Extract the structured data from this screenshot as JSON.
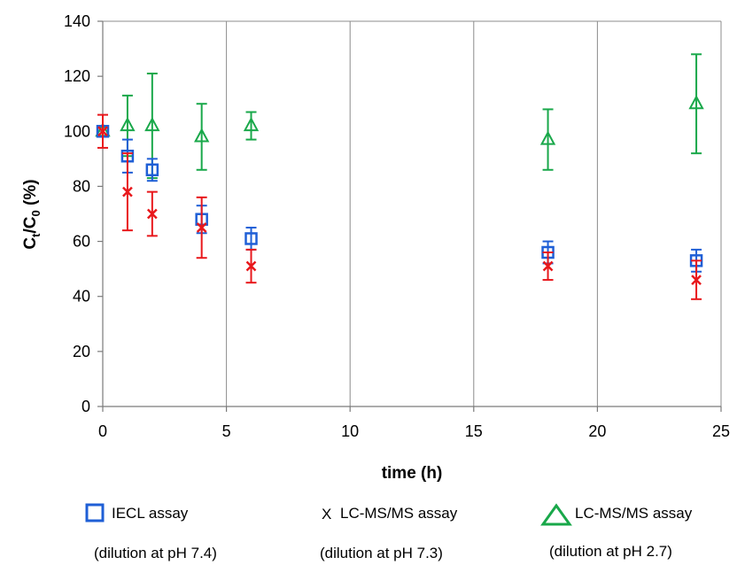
{
  "chart_data": {
    "type": "scatter",
    "xlabel": "time (h)",
    "ylabel_main": "C",
    "ylabel_sub1": "t",
    "ylabel_mid": "/C",
    "ylabel_sub2": "0",
    "ylabel_tail": " (%)",
    "xlim": [
      0,
      25
    ],
    "ylim": [
      0,
      140
    ],
    "xticks": [
      0,
      5,
      10,
      15,
      20,
      25
    ],
    "yticks": [
      0,
      20,
      40,
      60,
      80,
      100,
      120,
      140
    ],
    "grid": {
      "vertical": true,
      "horizontal": false
    },
    "legend_position": "bottom",
    "series": [
      {
        "name": "IECL assay",
        "name_line2": "(dilution at pH 7.4)",
        "marker": "square",
        "color": "#1f5fd6",
        "x": [
          0,
          1,
          2,
          4,
          6,
          18,
          24
        ],
        "y": [
          100,
          91,
          86,
          68,
          61,
          56,
          53
        ],
        "err": [
          0,
          6,
          4,
          5,
          4,
          4,
          4
        ]
      },
      {
        "name": "LC-MS/MS assay",
        "name_line2": "(dilution at pH 7.3)",
        "marker": "x",
        "legend_symbol": "X",
        "color": "#e8181c",
        "x": [
          0,
          1,
          2,
          4,
          6,
          18,
          24
        ],
        "y": [
          100,
          78,
          70,
          65,
          51,
          51,
          46
        ],
        "err": [
          6,
          14,
          8,
          11,
          6,
          5,
          7
        ]
      },
      {
        "name": "LC-MS/MS assay",
        "name_line2": "(dilution at pH 2.7)",
        "marker": "triangle",
        "color": "#19a84a",
        "x": [
          0,
          1,
          2,
          4,
          6,
          18,
          24
        ],
        "y": [
          100,
          102,
          102,
          98,
          102,
          97,
          110
        ],
        "err": [
          0,
          11,
          19,
          12,
          5,
          11,
          18
        ]
      }
    ]
  }
}
